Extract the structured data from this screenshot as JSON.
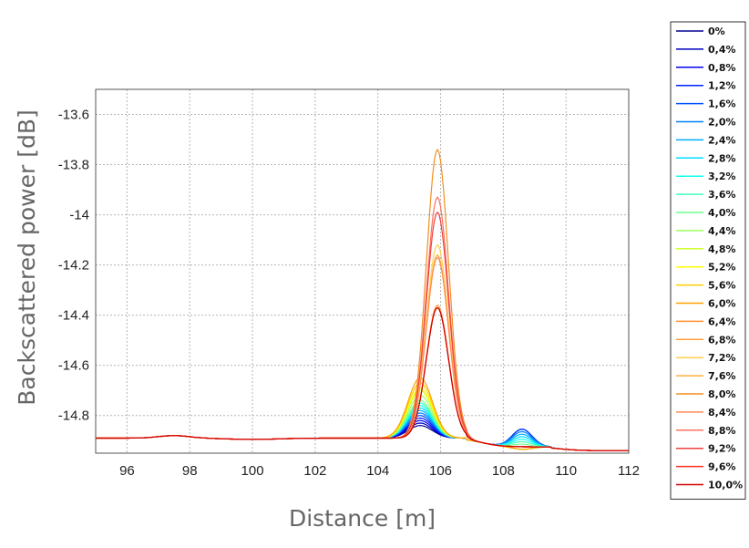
{
  "chart_data": {
    "type": "line",
    "xlabel": "Distance [m]",
    "ylabel": "Backscattered power [dB]",
    "xlim": [
      95,
      112
    ],
    "ylim": [
      -14.95,
      -13.5
    ],
    "xticks": [
      "96",
      "98",
      "100",
      "102",
      "104",
      "106",
      "108",
      "110",
      "112"
    ],
    "yticks": [
      "-13.6",
      "-13.8",
      "-14",
      "-14.2",
      "-14.4",
      "-14.6",
      "-14.8"
    ],
    "grid": true,
    "legend_position": "right",
    "series": [
      {
        "name": "0%",
        "color": "#00008f",
        "peak1": -14.85,
        "peak2": -14.84
      },
      {
        "name": "0,4%",
        "color": "#0000bf",
        "peak1": -14.84,
        "peak2": -14.84
      },
      {
        "name": "0,8%",
        "color": "#0000ef",
        "peak1": -14.83,
        "peak2": -14.84
      },
      {
        "name": "1,2%",
        "color": "#0020ff",
        "peak1": -14.82,
        "peak2": -14.84
      },
      {
        "name": "1,6%",
        "color": "#0050ff",
        "peak1": -14.81,
        "peak2": -14.84
      },
      {
        "name": "2,0%",
        "color": "#0080ff",
        "peak1": -14.8,
        "peak2": -14.85
      },
      {
        "name": "2,4%",
        "color": "#00afff",
        "peak1": -14.79,
        "peak2": -14.86
      },
      {
        "name": "2,8%",
        "color": "#00dfff",
        "peak1": -14.78,
        "peak2": -14.87
      },
      {
        "name": "3,2%",
        "color": "#10ffef",
        "peak1": -14.77,
        "peak2": -14.88
      },
      {
        "name": "3,6%",
        "color": "#40ffbf",
        "peak1": -14.76,
        "peak2": -14.89
      },
      {
        "name": "4,0%",
        "color": "#70ff8f",
        "peak1": -14.75,
        "peak2": -14.9
      },
      {
        "name": "4,4%",
        "color": "#9fff60",
        "peak1": -14.73,
        "peak2": -14.91
      },
      {
        "name": "4,8%",
        "color": "#cfff30",
        "peak1": -14.71,
        "peak2": -14.92
      },
      {
        "name": "5,2%",
        "color": "#ffff00",
        "peak1": -14.7,
        "peak2": -14.92
      },
      {
        "name": "5,6%",
        "color": "#ffcf00",
        "peak1": -14.68,
        "peak2": -14.92
      },
      {
        "name": "6,0%",
        "color": "#ffa000",
        "peak1": -14.66,
        "peak2": -14.92
      },
      {
        "name": "6,4%",
        "color": "#ff9030",
        "peak1": -14.38,
        "peak2": -14.91
      },
      {
        "name": "6,8%",
        "color": "#ff9f40",
        "peak1": -14.37,
        "peak2": -14.91
      },
      {
        "name": "7,2%",
        "color": "#ffd04a",
        "peak1": -14.13,
        "peak2": -14.91
      },
      {
        "name": "7,6%",
        "color": "#ffb040",
        "peak1": -14.17,
        "peak2": -14.91
      },
      {
        "name": "8,0%",
        "color": "#f09020",
        "peak1": -13.75,
        "peak2": -14.91
      },
      {
        "name": "8,4%",
        "color": "#ff8c50",
        "peak1": -14.18,
        "peak2": -14.91
      },
      {
        "name": "8,8%",
        "color": "#ff7060",
        "peak1": -13.94,
        "peak2": -14.91
      },
      {
        "name": "9,2%",
        "color": "#f04040",
        "peak1": -14.0,
        "peak2": -14.91
      },
      {
        "name": "9,6%",
        "color": "#ff3020",
        "peak1": -14.38,
        "peak2": -14.91
      },
      {
        "name": "10,0%",
        "color": "#d00000",
        "peak1": -14.38,
        "peak2": -14.91
      }
    ]
  }
}
